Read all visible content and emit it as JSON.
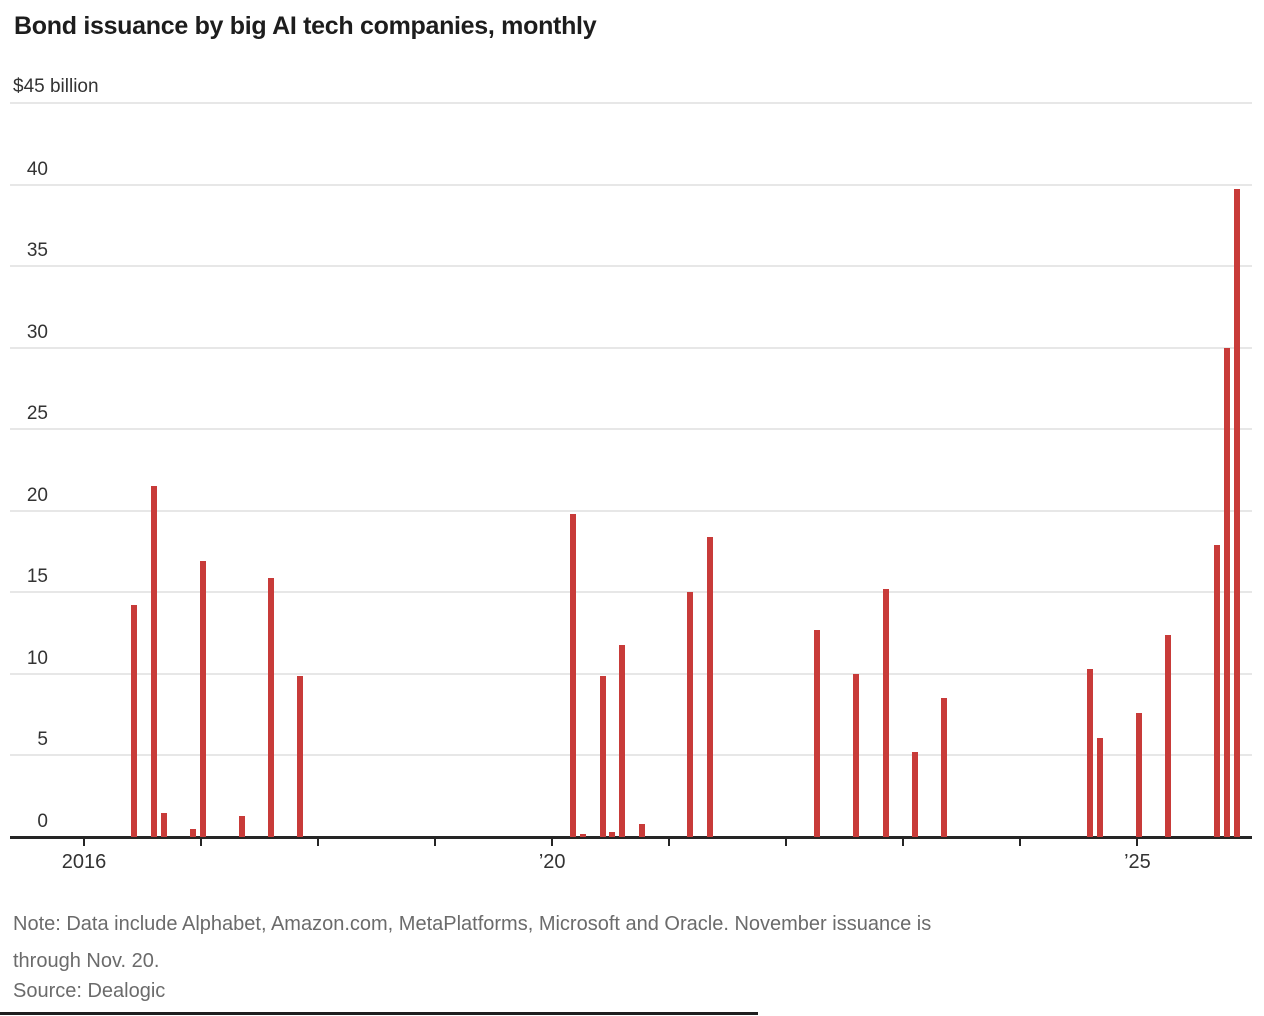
{
  "chart_data": {
    "type": "bar",
    "title": "Bond issuance by big AI tech companies, monthly",
    "unit_label": "$45 billion",
    "bar_color": "#c83b39",
    "grid_color": "#e7e7e7",
    "ylim": [
      0,
      45
    ],
    "y_ticks": [
      0,
      5,
      10,
      15,
      20,
      25,
      30,
      35,
      40
    ],
    "x_domain_years": [
      2016,
      2025
    ],
    "x_axis_labels": [
      {
        "year": 2016,
        "label": "2016"
      },
      {
        "year": 2020,
        "label": "’20"
      },
      {
        "year": 2025,
        "label": "’25"
      }
    ],
    "series": [
      {
        "month": "2016-06",
        "value": 14.2
      },
      {
        "month": "2016-08",
        "value": 21.5
      },
      {
        "month": "2016-09",
        "value": 1.5
      },
      {
        "month": "2016-12",
        "value": 0.5
      },
      {
        "month": "2017-01",
        "value": 16.9
      },
      {
        "month": "2017-05",
        "value": 1.3
      },
      {
        "month": "2017-08",
        "value": 15.9
      },
      {
        "month": "2017-11",
        "value": 9.9
      },
      {
        "month": "2020-03",
        "value": 19.8
      },
      {
        "month": "2020-04",
        "value": 0.2
      },
      {
        "month": "2020-06",
        "value": 9.9
      },
      {
        "month": "2020-07",
        "value": 0.3
      },
      {
        "month": "2020-08",
        "value": 11.8
      },
      {
        "month": "2020-10",
        "value": 0.8
      },
      {
        "month": "2021-03",
        "value": 15.0
      },
      {
        "month": "2021-05",
        "value": 18.4
      },
      {
        "month": "2022-04",
        "value": 12.7
      },
      {
        "month": "2022-08",
        "value": 10.0
      },
      {
        "month": "2022-11",
        "value": 15.2
      },
      {
        "month": "2023-02",
        "value": 5.2
      },
      {
        "month": "2023-05",
        "value": 8.5
      },
      {
        "month": "2024-08",
        "value": 10.3
      },
      {
        "month": "2024-09",
        "value": 6.1
      },
      {
        "month": "2025-01",
        "value": 7.6
      },
      {
        "month": "2025-04",
        "value": 12.4
      },
      {
        "month": "2025-09",
        "value": 17.9
      },
      {
        "month": "2025-10",
        "value": 30.0
      },
      {
        "month": "2025-11",
        "value": 39.7
      }
    ]
  },
  "note": {
    "lines": [
      "Note: Data include Alphabet, Amazon.com, MetaPlatforms, Microsoft and Oracle. November issuance is",
      "through Nov. 20."
    ]
  },
  "source": "Source: Dealogic"
}
